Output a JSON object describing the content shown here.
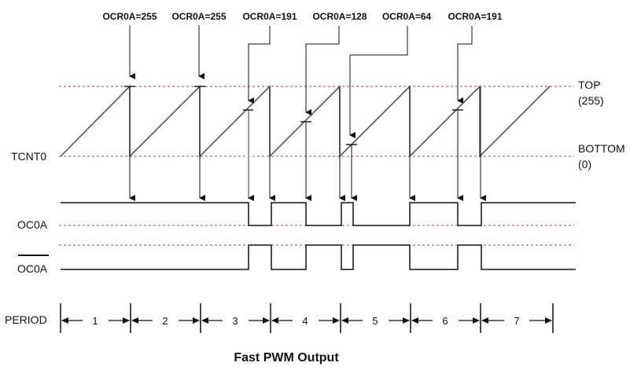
{
  "title": "Fast PWM Output",
  "labels": {
    "tcnt": "TCNT0",
    "oc": "OC0A",
    "ocbar": "OC0A",
    "period": "PERIOD",
    "top_line1": "TOP",
    "top_line2": "(255)",
    "bottom_line1": "BOTTOM",
    "bottom_line2": "(0)"
  },
  "ocr_labels": [
    "OCR0A=255",
    "OCR0A=255",
    "OCR0A=191",
    "OCR0A=128",
    "OCR0A=64",
    "OCR0A=191"
  ],
  "periods": [
    "1",
    "2",
    "3",
    "4",
    "5",
    "6",
    "7"
  ],
  "colors": {
    "signal": "#111111",
    "ramp": "#555555",
    "guide": "#c0392b"
  }
}
